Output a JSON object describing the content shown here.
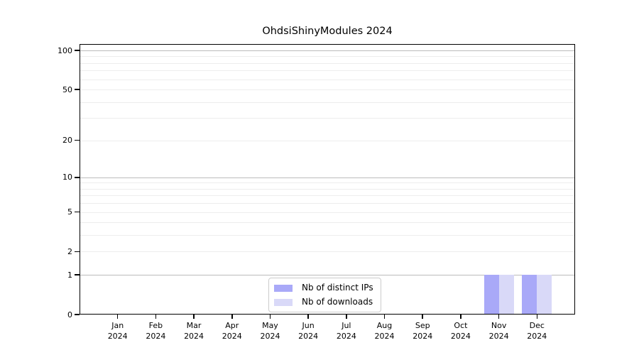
{
  "chart_data": {
    "type": "bar",
    "title": "OhdsiShinyModules 2024",
    "categories": [
      "Jan 2024",
      "Feb 2024",
      "Mar 2024",
      "Apr 2024",
      "May 2024",
      "Jun 2024",
      "Jul 2024",
      "Aug 2024",
      "Sep 2024",
      "Oct 2024",
      "Nov 2024",
      "Dec 2024"
    ],
    "series": [
      {
        "name": "Nb of distinct IPs",
        "color": "#a9a9f8",
        "values": [
          0,
          0,
          0,
          0,
          0,
          0,
          0,
          0,
          0,
          0,
          1,
          1
        ]
      },
      {
        "name": "Nb of downloads",
        "color": "#d9d9f8",
        "values": [
          0,
          0,
          0,
          0,
          0,
          0,
          0,
          0,
          0,
          0,
          1,
          1
        ]
      }
    ],
    "xlabel": "",
    "ylabel": "",
    "yscale": "log1p",
    "ylim": [
      0,
      112
    ],
    "y_ticks": [
      0,
      1,
      2,
      5,
      10,
      20,
      50,
      100
    ],
    "y_major_gridlines": [
      1,
      10,
      100
    ],
    "y_minor_gridlines": [
      2,
      3,
      4,
      5,
      6,
      7,
      8,
      9,
      20,
      30,
      40,
      50,
      60,
      70,
      80,
      90
    ],
    "grid": true,
    "legend_position": "bottom-center-inside"
  },
  "colors": {
    "bar_distinct_ips": "#a9a9f8",
    "bar_downloads": "#d9d9f8",
    "major_gridline": "#bbbbbb",
    "minor_gridline": "#ededed",
    "axis": "#000000",
    "legend_border": "#cccccc",
    "background": "#ffffff"
  }
}
